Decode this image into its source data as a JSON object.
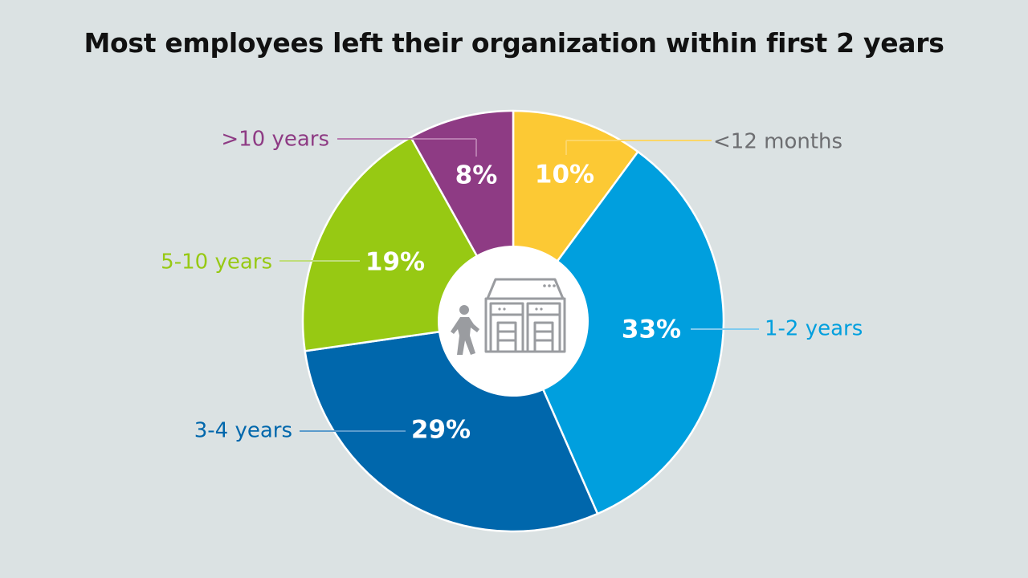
{
  "chart_data": {
    "type": "pie",
    "variant": "donut",
    "title": "Most employees left their organization within first 2 years",
    "slices": [
      {
        "label": "<12 months",
        "value": 10,
        "display": "10%",
        "color": "#fcc934",
        "label_color": "#6d6e71"
      },
      {
        "label": "1-2 years",
        "value": 33,
        "display": "33%",
        "color": "#009fde",
        "label_color": "#009fde"
      },
      {
        "label": "3-4 years",
        "value": 29,
        "display": "29%",
        "color": "#0067ac",
        "label_color": "#0067ac"
      },
      {
        "label": "5-10 years",
        "value": 19,
        "display": "19%",
        "color": "#97c913",
        "label_color": "#97c913"
      },
      {
        "label": ">10 years",
        "value": 8,
        "display": "8%",
        "color": "#8e3b84",
        "label_color": "#8e3b84"
      }
    ],
    "start": "top",
    "direction": "clockwise",
    "center_icon": "person-leaving-building-icon"
  }
}
